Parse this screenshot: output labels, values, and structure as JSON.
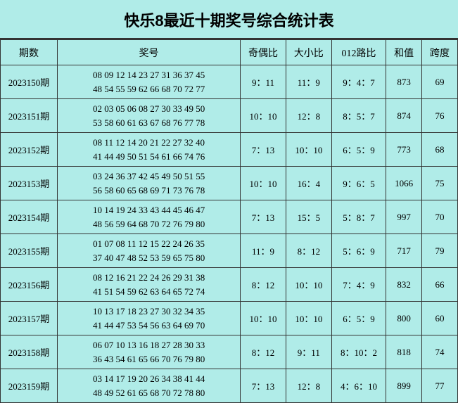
{
  "title": "快乐8最近十期奖号综合统计表",
  "colors": {
    "background": "#b0ece8",
    "border": "#333333",
    "text": "#000000"
  },
  "headers": {
    "period": "期数",
    "numbers": "奖号",
    "odd_even": "奇偶比",
    "big_small": "大小比",
    "route012": "012路比",
    "sum": "和值",
    "span": "跨度"
  },
  "rows": [
    {
      "period": "2023150期",
      "line1": "08 09 12 14 23 27 31 36 37 45",
      "line2": "48 54 55 59 62 66 68 70 72 77",
      "odd_even": "9：11",
      "big_small": "11：9",
      "route012": "9：4：7",
      "sum": "873",
      "span": "69"
    },
    {
      "period": "2023151期",
      "line1": "02 03 05 06 08 27 30 33 49 50",
      "line2": "53 58 60 61 63 67 68 76 77 78",
      "odd_even": "10：10",
      "big_small": "12：8",
      "route012": "8：5：7",
      "sum": "874",
      "span": "76"
    },
    {
      "period": "2023152期",
      "line1": "08 11 12 14 20 21 22 27 32 40",
      "line2": "41 44 49 50 51 54 61 66 74 76",
      "odd_even": "7：13",
      "big_small": "10：10",
      "route012": "6：5：9",
      "sum": "773",
      "span": "68"
    },
    {
      "period": "2023153期",
      "line1": "03 24 36 37 42 45 49 50 51 55",
      "line2": "56 58 60 65 68 69 71 73 76 78",
      "odd_even": "10：10",
      "big_small": "16：4",
      "route012": "9：6：5",
      "sum": "1066",
      "span": "75"
    },
    {
      "period": "2023154期",
      "line1": "10 14 19 24 33 43 44 45 46 47",
      "line2": "48 56 59 64 68 70 72 76 79 80",
      "odd_even": "7：13",
      "big_small": "15：5",
      "route012": "5：8：7",
      "sum": "997",
      "span": "70"
    },
    {
      "period": "2023155期",
      "line1": "01 07 08 11 12 15 22 24 26 35",
      "line2": "37 40 47 48 52 53 59 65 75 80",
      "odd_even": "11：9",
      "big_small": "8：12",
      "route012": "5：6：9",
      "sum": "717",
      "span": "79"
    },
    {
      "period": "2023156期",
      "line1": "08 12 16 21 22 24 26 29 31 38",
      "line2": "41 51 54 59 62 63 64 65 72 74",
      "odd_even": "8：12",
      "big_small": "10：10",
      "route012": "7：4：9",
      "sum": "832",
      "span": "66"
    },
    {
      "period": "2023157期",
      "line1": "10 13 17 18 23 27 30 32 34 35",
      "line2": "41 44 47 53 54 56 63 64 69 70",
      "odd_even": "10：10",
      "big_small": "10：10",
      "route012": "6：5：9",
      "sum": "800",
      "span": "60"
    },
    {
      "period": "2023158期",
      "line1": "06 07 10 13 16 18 27 28 30 33",
      "line2": "36 43 54 61 65 66 70 76 79 80",
      "odd_even": "8：12",
      "big_small": "9：11",
      "route012": "8：10：2",
      "sum": "818",
      "span": "74"
    },
    {
      "period": "2023159期",
      "line1": "03 14 17 19 20 26 34 38 41 44",
      "line2": "48 49 52 61 65 68 70 72 78 80",
      "odd_even": "7：13",
      "big_small": "12：8",
      "route012": "4：6：10",
      "sum": "899",
      "span": "77"
    }
  ]
}
